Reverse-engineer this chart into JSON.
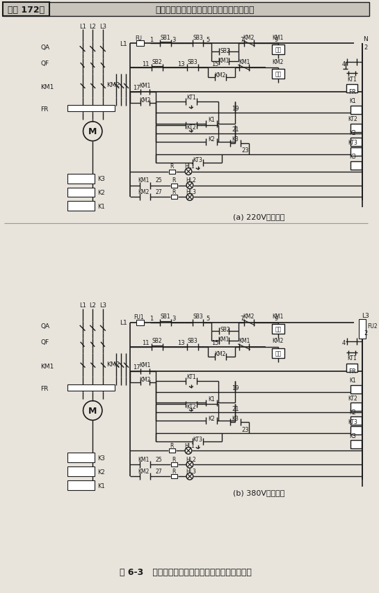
{
  "title": "》例 172》 按顺序自动短接电阱加速的正反转控制电路",
  "title_raw": "[例 172]  按顺序自动短接电阱加速的正反转控制电路",
  "caption": "图 6-3   按顺序自动短接电阱加速的正反转控制电路",
  "sub_a": "(a) 220V控制回路",
  "sub_b": "(b) 380V控制回路",
  "bg_color": "#e8e4dc",
  "line_color": "#1a1a1a",
  "title_fontsize": 10,
  "caption_fontsize": 9,
  "sub_fontsize": 8
}
